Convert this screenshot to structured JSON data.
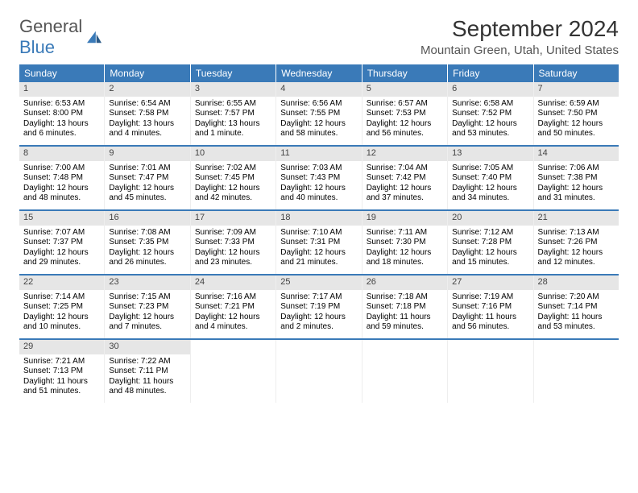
{
  "logo": {
    "text1": "General",
    "text2": "Blue"
  },
  "title": "September 2024",
  "location": "Mountain Green, Utah, United States",
  "colors": {
    "accent": "#3a7ab8",
    "numbar": "#e6e6e6"
  },
  "day_names": [
    "Sunday",
    "Monday",
    "Tuesday",
    "Wednesday",
    "Thursday",
    "Friday",
    "Saturday"
  ],
  "days": [
    {
      "n": "1",
      "sr": "6:53 AM",
      "ss": "8:00 PM",
      "dl": "13 hours and 6 minutes."
    },
    {
      "n": "2",
      "sr": "6:54 AM",
      "ss": "7:58 PM",
      "dl": "13 hours and 4 minutes."
    },
    {
      "n": "3",
      "sr": "6:55 AM",
      "ss": "7:57 PM",
      "dl": "13 hours and 1 minute."
    },
    {
      "n": "4",
      "sr": "6:56 AM",
      "ss": "7:55 PM",
      "dl": "12 hours and 58 minutes."
    },
    {
      "n": "5",
      "sr": "6:57 AM",
      "ss": "7:53 PM",
      "dl": "12 hours and 56 minutes."
    },
    {
      "n": "6",
      "sr": "6:58 AM",
      "ss": "7:52 PM",
      "dl": "12 hours and 53 minutes."
    },
    {
      "n": "7",
      "sr": "6:59 AM",
      "ss": "7:50 PM",
      "dl": "12 hours and 50 minutes."
    },
    {
      "n": "8",
      "sr": "7:00 AM",
      "ss": "7:48 PM",
      "dl": "12 hours and 48 minutes."
    },
    {
      "n": "9",
      "sr": "7:01 AM",
      "ss": "7:47 PM",
      "dl": "12 hours and 45 minutes."
    },
    {
      "n": "10",
      "sr": "7:02 AM",
      "ss": "7:45 PM",
      "dl": "12 hours and 42 minutes."
    },
    {
      "n": "11",
      "sr": "7:03 AM",
      "ss": "7:43 PM",
      "dl": "12 hours and 40 minutes."
    },
    {
      "n": "12",
      "sr": "7:04 AM",
      "ss": "7:42 PM",
      "dl": "12 hours and 37 minutes."
    },
    {
      "n": "13",
      "sr": "7:05 AM",
      "ss": "7:40 PM",
      "dl": "12 hours and 34 minutes."
    },
    {
      "n": "14",
      "sr": "7:06 AM",
      "ss": "7:38 PM",
      "dl": "12 hours and 31 minutes."
    },
    {
      "n": "15",
      "sr": "7:07 AM",
      "ss": "7:37 PM",
      "dl": "12 hours and 29 minutes."
    },
    {
      "n": "16",
      "sr": "7:08 AM",
      "ss": "7:35 PM",
      "dl": "12 hours and 26 minutes."
    },
    {
      "n": "17",
      "sr": "7:09 AM",
      "ss": "7:33 PM",
      "dl": "12 hours and 23 minutes."
    },
    {
      "n": "18",
      "sr": "7:10 AM",
      "ss": "7:31 PM",
      "dl": "12 hours and 21 minutes."
    },
    {
      "n": "19",
      "sr": "7:11 AM",
      "ss": "7:30 PM",
      "dl": "12 hours and 18 minutes."
    },
    {
      "n": "20",
      "sr": "7:12 AM",
      "ss": "7:28 PM",
      "dl": "12 hours and 15 minutes."
    },
    {
      "n": "21",
      "sr": "7:13 AM",
      "ss": "7:26 PM",
      "dl": "12 hours and 12 minutes."
    },
    {
      "n": "22",
      "sr": "7:14 AM",
      "ss": "7:25 PM",
      "dl": "12 hours and 10 minutes."
    },
    {
      "n": "23",
      "sr": "7:15 AM",
      "ss": "7:23 PM",
      "dl": "12 hours and 7 minutes."
    },
    {
      "n": "24",
      "sr": "7:16 AM",
      "ss": "7:21 PM",
      "dl": "12 hours and 4 minutes."
    },
    {
      "n": "25",
      "sr": "7:17 AM",
      "ss": "7:19 PM",
      "dl": "12 hours and 2 minutes."
    },
    {
      "n": "26",
      "sr": "7:18 AM",
      "ss": "7:18 PM",
      "dl": "11 hours and 59 minutes."
    },
    {
      "n": "27",
      "sr": "7:19 AM",
      "ss": "7:16 PM",
      "dl": "11 hours and 56 minutes."
    },
    {
      "n": "28",
      "sr": "7:20 AM",
      "ss": "7:14 PM",
      "dl": "11 hours and 53 minutes."
    },
    {
      "n": "29",
      "sr": "7:21 AM",
      "ss": "7:13 PM",
      "dl": "11 hours and 51 minutes."
    },
    {
      "n": "30",
      "sr": "7:22 AM",
      "ss": "7:11 PM",
      "dl": "11 hours and 48 minutes."
    }
  ],
  "labels": {
    "sunrise": "Sunrise: ",
    "sunset": "Sunset: ",
    "daylight": "Daylight: "
  }
}
